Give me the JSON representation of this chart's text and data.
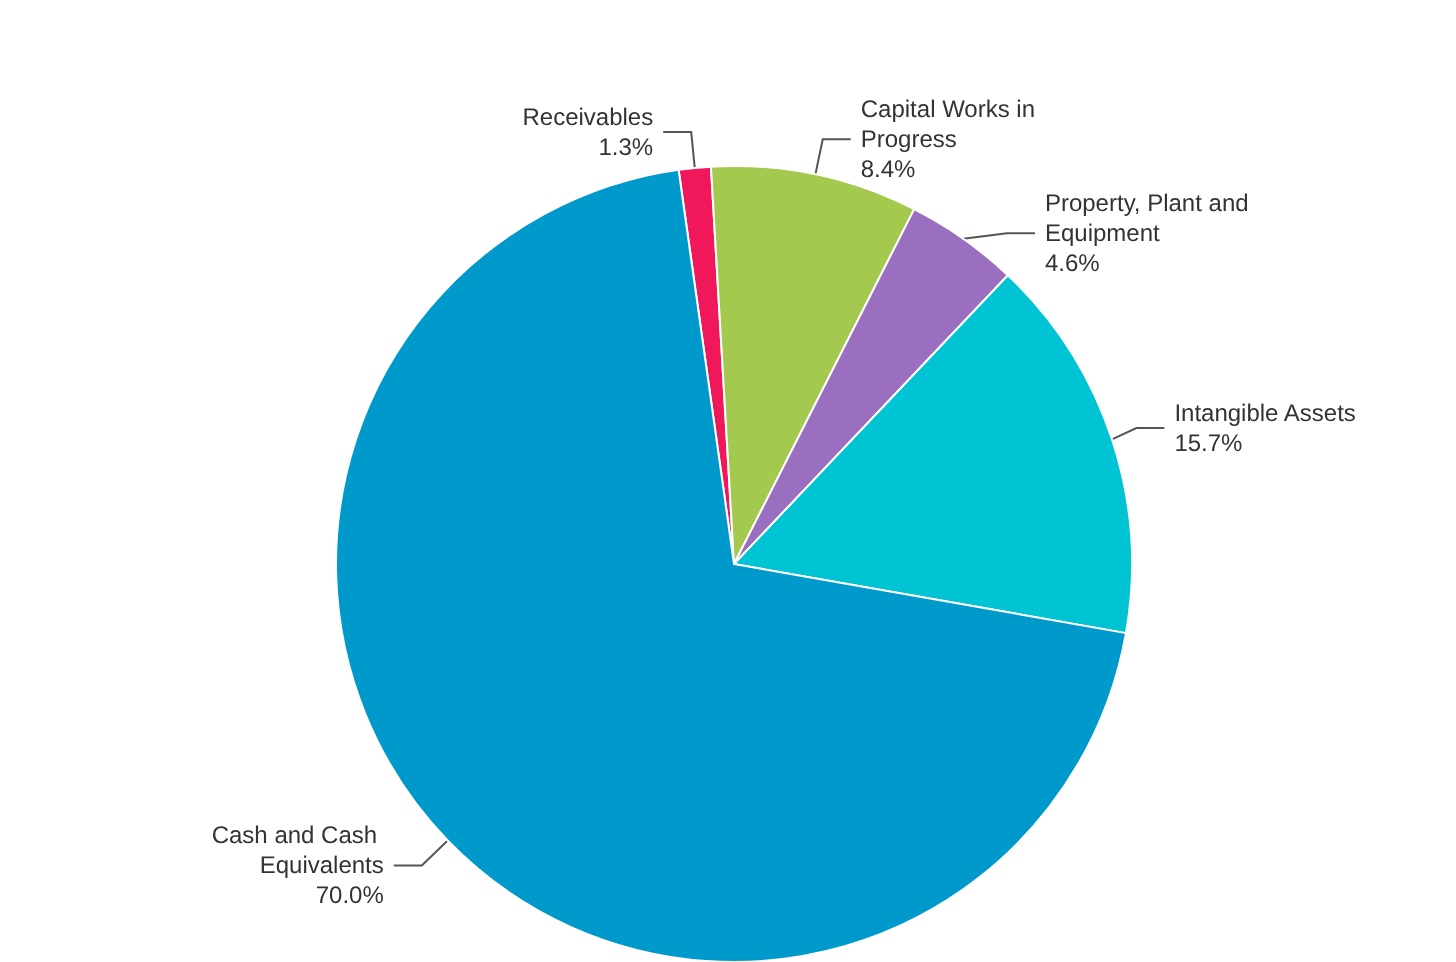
{
  "chart_data": {
    "type": "pie",
    "categories": [
      "Receivables",
      "Capital Works in Progress",
      "Property, Plant and Equipment",
      "Intangible Assets",
      "Cash and Cash Equivalents"
    ],
    "values": [
      1.3,
      8.4,
      4.6,
      15.7,
      70.0
    ],
    "value_labels": [
      "1.3%",
      "8.4%",
      "4.6%",
      "15.7%",
      "70.0%"
    ],
    "colors": [
      "#f0185a",
      "#a4c94f",
      "#9b6fbf",
      "#00c4d4",
      "#0099cc"
    ],
    "legend": false
  }
}
